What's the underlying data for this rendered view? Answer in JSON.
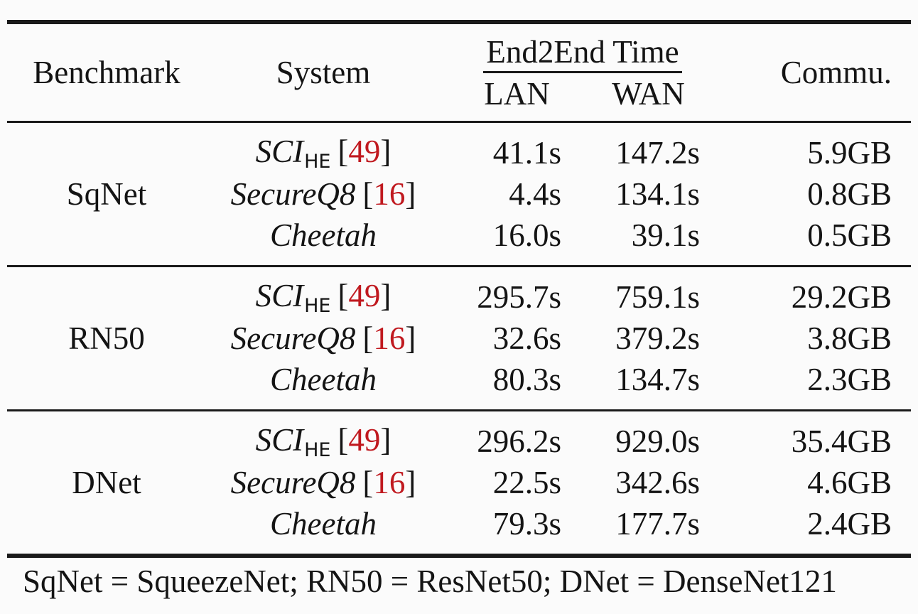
{
  "colors": {
    "citation_red": "#c0191f",
    "text": "#141414",
    "rule": "#1a1a1a",
    "background": "#fbfbfb"
  },
  "header": {
    "benchmark": "Benchmark",
    "system": "System",
    "end2end_time": "End2End Time",
    "lan": "LAN",
    "wan": "WAN",
    "commu": "Commu."
  },
  "sections": [
    {
      "benchmark": "SqNet",
      "rows": [
        {
          "name": "SCI",
          "sub": "HE",
          "cite_open": "[",
          "cite_num": "49",
          "cite_close": "]",
          "lan": "41.1s",
          "wan": "147.2s",
          "commu": "5.9GB"
        },
        {
          "name": "SecureQ8",
          "sub": "",
          "cite_open": "[",
          "cite_num": "16",
          "cite_close": "]",
          "lan": "4.4s",
          "wan": "134.1s",
          "commu": "0.8GB"
        },
        {
          "name": "Cheetah",
          "sub": "",
          "cite_open": "",
          "cite_num": "",
          "cite_close": "",
          "lan": "16.0s",
          "wan": "39.1s",
          "commu": "0.5GB"
        }
      ]
    },
    {
      "benchmark": "RN50",
      "rows": [
        {
          "name": "SCI",
          "sub": "HE",
          "cite_open": "[",
          "cite_num": "49",
          "cite_close": "]",
          "lan": "295.7s",
          "wan": "759.1s",
          "commu": "29.2GB"
        },
        {
          "name": "SecureQ8",
          "sub": "",
          "cite_open": "[",
          "cite_num": "16",
          "cite_close": "]",
          "lan": "32.6s",
          "wan": "379.2s",
          "commu": "3.8GB"
        },
        {
          "name": "Cheetah",
          "sub": "",
          "cite_open": "",
          "cite_num": "",
          "cite_close": "",
          "lan": "80.3s",
          "wan": "134.7s",
          "commu": "2.3GB"
        }
      ]
    },
    {
      "benchmark": "DNet",
      "rows": [
        {
          "name": "SCI",
          "sub": "HE",
          "cite_open": "[",
          "cite_num": "49",
          "cite_close": "]",
          "lan": "296.2s",
          "wan": "929.0s",
          "commu": "35.4GB"
        },
        {
          "name": "SecureQ8",
          "sub": "",
          "cite_open": "[",
          "cite_num": "16",
          "cite_close": "]",
          "lan": "22.5s",
          "wan": "342.6s",
          "commu": "4.6GB"
        },
        {
          "name": "Cheetah",
          "sub": "",
          "cite_open": "",
          "cite_num": "",
          "cite_close": "",
          "lan": "79.3s",
          "wan": "177.7s",
          "commu": "2.4GB"
        }
      ]
    }
  ],
  "footnote": "SqNet = SqueezeNet; RN50 = ResNet50; DNet = DenseNet121"
}
